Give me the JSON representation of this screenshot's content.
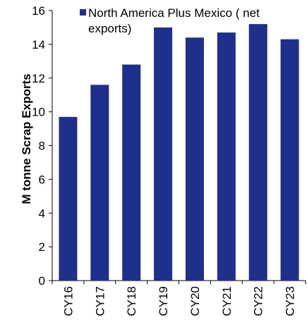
{
  "chart_data": {
    "type": "bar",
    "categories": [
      "CY16",
      "CY17",
      "CY18",
      "CY19",
      "CY20",
      "CY21",
      "CY22",
      "CY23"
    ],
    "series": [
      {
        "name": "North America  Plus Mexico ( net exports)",
        "values": [
          9.7,
          11.6,
          12.8,
          15.0,
          14.4,
          14.7,
          15.2,
          14.3
        ],
        "color": "#1f2f8c"
      }
    ],
    "ylabel": "M tonne Scrap Exports",
    "xlabel": "",
    "ylim": [
      0,
      16
    ],
    "yticks": [
      0,
      2,
      4,
      6,
      8,
      10,
      12,
      14,
      16
    ],
    "grid": false,
    "legend_position": "top",
    "legend_lines": [
      "North America  Plus Mexico ( net",
      "exports)"
    ]
  }
}
